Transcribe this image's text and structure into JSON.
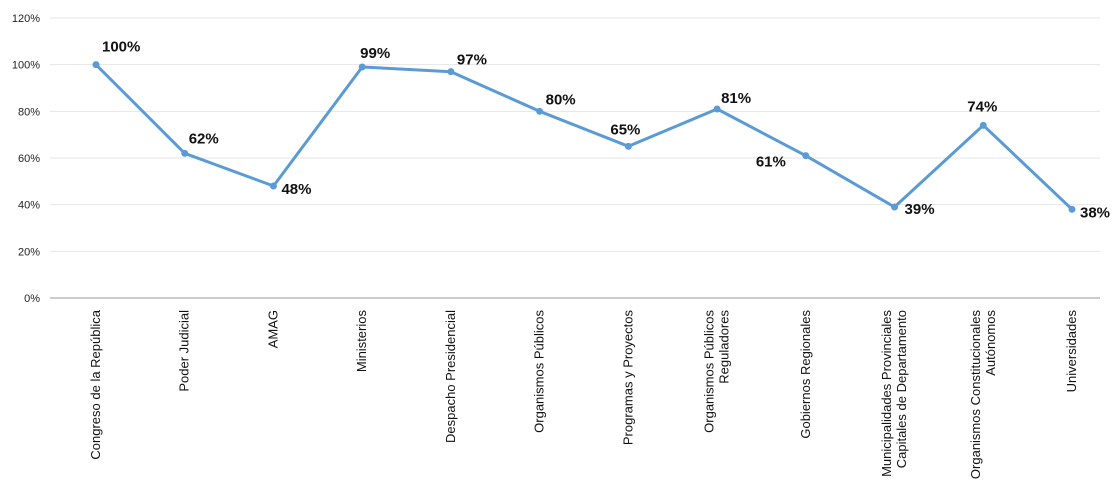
{
  "chart_data": {
    "type": "line",
    "title": "",
    "xlabel": "",
    "ylabel": "",
    "ylim": [
      0,
      120
    ],
    "yticks": [
      0,
      20,
      40,
      60,
      80,
      100,
      120
    ],
    "ytick_labels": [
      "0%",
      "20%",
      "40%",
      "60%",
      "80%",
      "100%",
      "120%"
    ],
    "grid": true,
    "legend": "none",
    "categories": [
      [
        "Congreso de la República"
      ],
      [
        "Poder Judicial"
      ],
      [
        "AMAG"
      ],
      [
        "Ministerios"
      ],
      [
        "Despacho Presidencial"
      ],
      [
        "Organismos Públicos"
      ],
      [
        "Programas y Proyectos"
      ],
      [
        "Organismos Públicos",
        "Reguladores"
      ],
      [
        "Gobiernos Regionales"
      ],
      [
        "Municipalidades Provinciales",
        "Capitales de Departamento"
      ],
      [
        "Organismos Constitucionales",
        "Autónomos"
      ],
      [
        "Universidades"
      ]
    ],
    "series": [
      {
        "values": [
          100,
          62,
          48,
          99,
          97,
          80,
          65,
          81,
          61,
          39,
          74,
          38
        ],
        "labels": [
          "100%",
          "62%",
          "48%",
          "99%",
          "97%",
          "80%",
          "65%",
          "81%",
          "61%",
          "39%",
          "74%",
          "38%"
        ],
        "color": "#5B9BD5"
      }
    ]
  }
}
